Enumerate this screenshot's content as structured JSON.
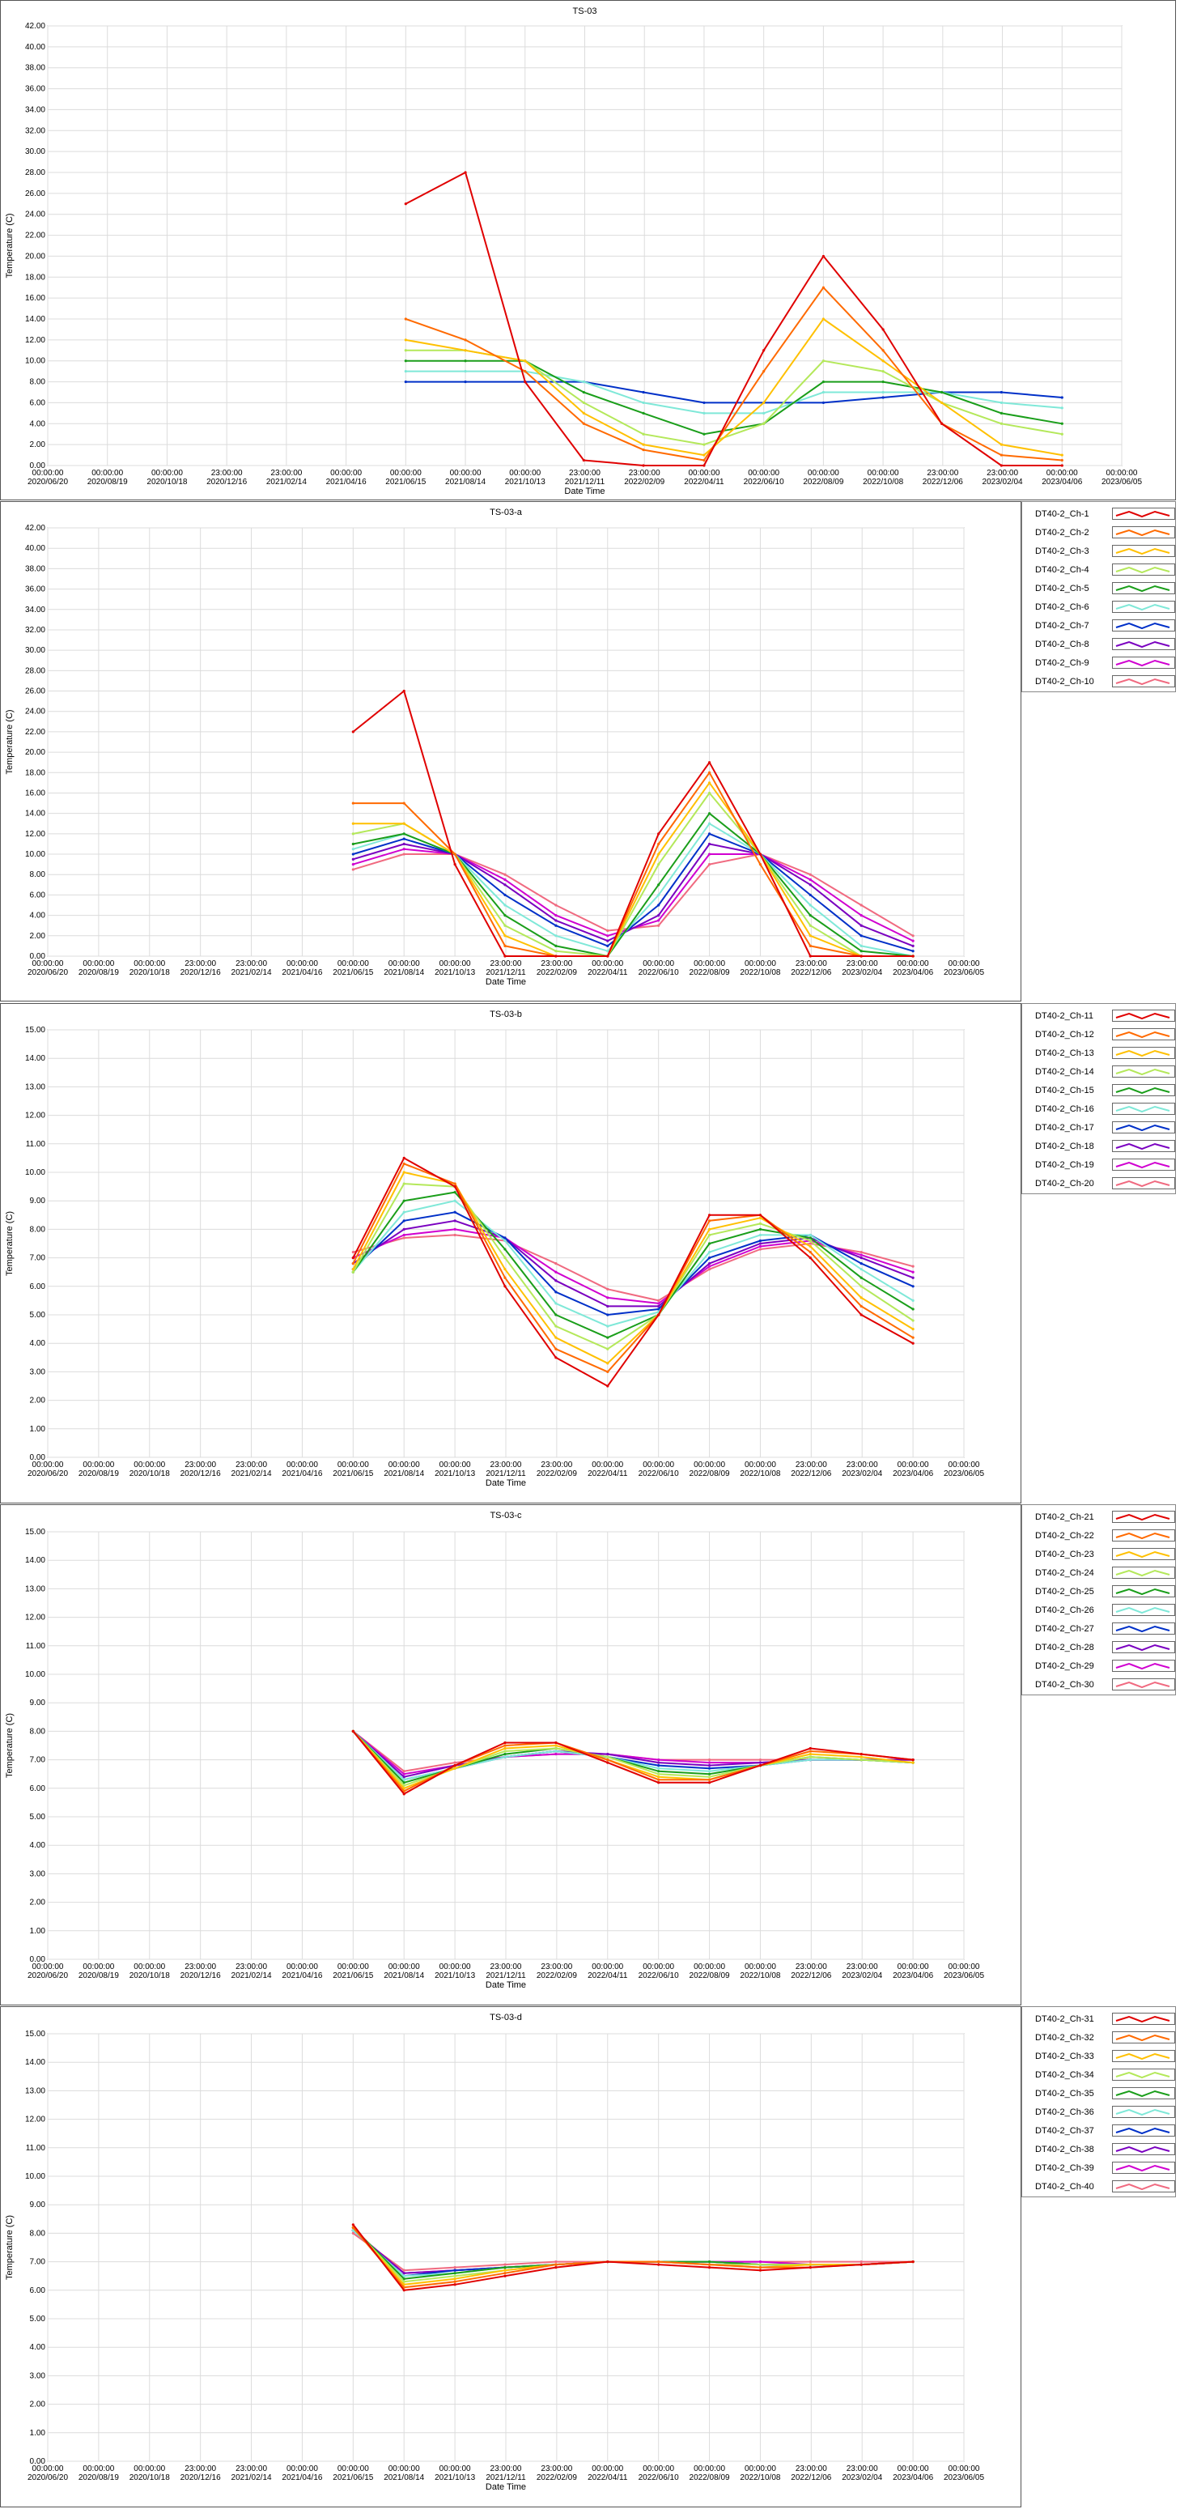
{
  "x_ticks": [
    {
      "t": "00:00:00",
      "d": "2020/06/20"
    },
    {
      "t": "00:00:00",
      "d": "2020/08/19"
    },
    {
      "t": "00:00:00",
      "d": "2020/10/18"
    },
    {
      "t": "23:00:00",
      "d": "2020/12/16"
    },
    {
      "t": "23:00:00",
      "d": "2021/02/14"
    },
    {
      "t": "00:00:00",
      "d": "2021/04/16"
    },
    {
      "t": "00:00:00",
      "d": "2021/06/15"
    },
    {
      "t": "00:00:00",
      "d": "2021/08/14"
    },
    {
      "t": "00:00:00",
      "d": "2021/10/13"
    },
    {
      "t": "23:00:00",
      "d": "2021/12/11"
    },
    {
      "t": "23:00:00",
      "d": "2022/02/09"
    },
    {
      "t": "00:00:00",
      "d": "2022/04/11"
    },
    {
      "t": "00:00:00",
      "d": "2022/06/10"
    },
    {
      "t": "00:00:00",
      "d": "2022/08/09"
    },
    {
      "t": "00:00:00",
      "d": "2022/10/08"
    },
    {
      "t": "23:00:00",
      "d": "2022/12/06"
    },
    {
      "t": "23:00:00",
      "d": "2023/02/04"
    },
    {
      "t": "00:00:00",
      "d": "2023/04/06"
    },
    {
      "t": "00:00:00",
      "d": "2023/06/05"
    }
  ],
  "xlabel": "Date Time",
  "ylabel": "Temperature (C)",
  "chart_data": [
    {
      "type": "line",
      "title": "TS-03",
      "xlabel": "Date Time",
      "ylabel": "Temperature (C)",
      "x_range": [
        "2020/06/20",
        "2023/06/05"
      ],
      "ylim": [
        0,
        42
      ],
      "grid": true,
      "legend": "none",
      "x": [
        "2021/06/15",
        "2021/08/14",
        "2021/10/13",
        "2021/12/11",
        "2022/02/09",
        "2022/04/11",
        "2022/06/10",
        "2022/08/09",
        "2022/10/08",
        "2022/12/06",
        "2023/02/04",
        "2023/04/06"
      ],
      "series": [
        {
          "values": [
            25,
            28,
            8,
            0.5,
            0,
            0,
            11,
            20,
            13,
            4,
            0,
            0
          ]
        },
        {
          "values": [
            14,
            12,
            9,
            4,
            1.5,
            0.5,
            9,
            17,
            11,
            4,
            1,
            0.5
          ]
        },
        {
          "values": [
            12,
            11,
            10,
            5,
            2,
            1,
            6,
            14,
            10,
            6,
            2,
            1
          ]
        },
        {
          "values": [
            11,
            11,
            10,
            6,
            3,
            2,
            4,
            10,
            9,
            6,
            4,
            3
          ]
        },
        {
          "values": [
            10,
            10,
            10,
            7,
            5,
            3,
            4,
            8,
            8,
            7,
            5,
            4
          ]
        },
        {
          "values": [
            9,
            9,
            9,
            8,
            6,
            5,
            5,
            7,
            7,
            7,
            6,
            5.5
          ]
        },
        {
          "values": [
            8,
            8,
            8,
            8,
            7,
            6,
            6,
            6,
            6.5,
            7,
            7,
            6.5
          ]
        }
      ]
    },
    {
      "type": "line",
      "title": "TS-03-a",
      "xlabel": "Date Time",
      "ylabel": "Temperature (C)",
      "x_range": [
        "2020/06/20",
        "2023/06/05"
      ],
      "ylim": [
        0,
        42
      ],
      "grid": true,
      "legend": "right",
      "x": [
        "2021/06/15",
        "2021/08/14",
        "2021/10/13",
        "2021/12/11",
        "2022/02/09",
        "2022/04/11",
        "2022/06/10",
        "2022/08/09",
        "2022/10/08",
        "2022/12/06",
        "2023/02/04",
        "2023/04/06"
      ],
      "series": [
        {
          "name": "DT40-2_Ch-1",
          "values": [
            22,
            26,
            9,
            0,
            0,
            0,
            12,
            19,
            10,
            0,
            0,
            0
          ]
        },
        {
          "name": "DT40-2_Ch-2",
          "values": [
            15,
            15,
            10,
            1,
            0,
            0,
            11,
            18,
            9,
            1,
            0,
            0
          ]
        },
        {
          "name": "DT40-2_Ch-3",
          "values": [
            13,
            13,
            10,
            2,
            0,
            0,
            10,
            17,
            10,
            2,
            0,
            0
          ]
        },
        {
          "name": "DT40-2_Ch-4",
          "values": [
            12,
            13,
            10,
            3,
            0.5,
            0,
            9,
            16,
            10,
            3,
            0,
            0
          ]
        },
        {
          "name": "DT40-2_Ch-5",
          "values": [
            11,
            12,
            10,
            4,
            1,
            0,
            7,
            14,
            10,
            4,
            0.5,
            0
          ]
        },
        {
          "name": "DT40-2_Ch-6",
          "values": [
            10.5,
            12,
            10,
            5,
            2,
            0.5,
            6,
            13,
            10,
            5,
            1,
            0
          ]
        },
        {
          "name": "DT40-2_Ch-7",
          "values": [
            10,
            11.5,
            10,
            6,
            3,
            1,
            5,
            12,
            10,
            6,
            2,
            0.5
          ]
        },
        {
          "name": "DT40-2_Ch-8",
          "values": [
            9.5,
            11,
            10,
            7,
            3.5,
            1.5,
            4,
            11,
            10,
            7,
            3,
            1
          ]
        },
        {
          "name": "DT40-2_Ch-9",
          "values": [
            9,
            10.5,
            10,
            7.5,
            4,
            2,
            3.5,
            10,
            10,
            7.5,
            4,
            1.5
          ]
        },
        {
          "name": "DT40-2_Ch-10",
          "values": [
            8.5,
            10,
            10,
            8,
            5,
            2.5,
            3,
            9,
            10,
            8,
            5,
            2
          ]
        }
      ]
    },
    {
      "type": "line",
      "title": "TS-03-b",
      "xlabel": "Date Time",
      "ylabel": "Temperature (C)",
      "x_range": [
        "2020/06/20",
        "2023/06/05"
      ],
      "ylim": [
        0,
        15
      ],
      "grid": true,
      "legend": "right",
      "x": [
        "2021/06/15",
        "2021/08/14",
        "2021/10/13",
        "2021/12/11",
        "2022/02/09",
        "2022/04/11",
        "2022/06/10",
        "2022/08/09",
        "2022/10/08",
        "2022/12/06",
        "2023/02/04",
        "2023/04/06"
      ],
      "series": [
        {
          "name": "DT40-2_Ch-11",
          "values": [
            7,
            10.5,
            9.5,
            6,
            3.5,
            2.5,
            5,
            8.5,
            8.5,
            7,
            5,
            4
          ]
        },
        {
          "name": "DT40-2_Ch-12",
          "values": [
            6.8,
            10.3,
            9.6,
            6.3,
            3.8,
            3,
            5,
            8.3,
            8.5,
            7.2,
            5.3,
            4.2
          ]
        },
        {
          "name": "DT40-2_Ch-13",
          "values": [
            6.6,
            10,
            9.6,
            6.6,
            4.2,
            3.3,
            5,
            8,
            8.4,
            7.4,
            5.6,
            4.5
          ]
        },
        {
          "name": "DT40-2_Ch-14",
          "values": [
            6.5,
            9.6,
            9.5,
            7,
            4.6,
            3.8,
            5,
            7.8,
            8.2,
            7.6,
            6,
            4.8
          ]
        },
        {
          "name": "DT40-2_Ch-15",
          "values": [
            6.5,
            9,
            9.3,
            7.3,
            5,
            4.2,
            5,
            7.5,
            8,
            7.7,
            6.3,
            5.2
          ]
        },
        {
          "name": "DT40-2_Ch-16",
          "values": [
            6.5,
            8.6,
            9,
            7.6,
            5.4,
            4.6,
            5.1,
            7.2,
            7.8,
            7.8,
            6.6,
            5.5
          ]
        },
        {
          "name": "DT40-2_Ch-17",
          "values": [
            6.6,
            8.3,
            8.6,
            7.7,
            5.8,
            5,
            5.2,
            7,
            7.6,
            7.8,
            6.8,
            6
          ]
        },
        {
          "name": "DT40-2_Ch-18",
          "values": [
            6.8,
            8,
            8.3,
            7.7,
            6.2,
            5.3,
            5.3,
            6.8,
            7.5,
            7.7,
            7,
            6.3
          ]
        },
        {
          "name": "DT40-2_Ch-19",
          "values": [
            7,
            7.8,
            8,
            7.7,
            6.5,
            5.6,
            5.4,
            6.7,
            7.4,
            7.6,
            7.1,
            6.5
          ]
        },
        {
          "name": "DT40-2_Ch-20",
          "values": [
            7.2,
            7.7,
            7.8,
            7.6,
            6.8,
            5.9,
            5.5,
            6.6,
            7.3,
            7.5,
            7.2,
            6.7
          ]
        }
      ]
    },
    {
      "type": "line",
      "title": "TS-03-c",
      "xlabel": "Date Time",
      "ylabel": "Temperature (C)",
      "x_range": [
        "2020/06/20",
        "2023/06/05"
      ],
      "ylim": [
        0,
        15
      ],
      "grid": true,
      "legend": "right",
      "x": [
        "2021/06/15",
        "2021/08/14",
        "2021/10/13",
        "2021/12/11",
        "2022/02/09",
        "2022/04/11",
        "2022/06/10",
        "2022/08/09",
        "2022/10/08",
        "2022/12/06",
        "2023/02/04",
        "2023/04/06"
      ],
      "series": [
        {
          "name": "DT40-2_Ch-21",
          "values": [
            8,
            5.8,
            6.8,
            7.6,
            7.6,
            6.9,
            6.2,
            6.2,
            6.8,
            7.4,
            7.2,
            7
          ]
        },
        {
          "name": "DT40-2_Ch-22",
          "values": [
            8,
            5.9,
            6.8,
            7.5,
            7.6,
            7,
            6.3,
            6.3,
            6.8,
            7.3,
            7.2,
            7
          ]
        },
        {
          "name": "DT40-2_Ch-23",
          "values": [
            8,
            6,
            6.7,
            7.4,
            7.5,
            7,
            6.4,
            6.3,
            6.8,
            7.2,
            7.1,
            6.9
          ]
        },
        {
          "name": "DT40-2_Ch-24",
          "values": [
            8,
            6.1,
            6.7,
            7.3,
            7.4,
            7.1,
            6.5,
            6.4,
            6.8,
            7.1,
            7,
            6.9
          ]
        },
        {
          "name": "DT40-2_Ch-25",
          "values": [
            8,
            6.2,
            6.7,
            7.2,
            7.4,
            7.1,
            6.6,
            6.5,
            6.8,
            7.1,
            7,
            6.9
          ]
        },
        {
          "name": "DT40-2_Ch-26",
          "values": [
            8,
            6.3,
            6.7,
            7.1,
            7.3,
            7.1,
            6.7,
            6.6,
            6.8,
            7,
            7,
            6.9
          ]
        },
        {
          "name": "DT40-2_Ch-27",
          "values": [
            8,
            6.3,
            6.7,
            7.1,
            7.3,
            7.1,
            6.8,
            6.7,
            6.8,
            7,
            7,
            6.9
          ]
        },
        {
          "name": "DT40-2_Ch-28",
          "values": [
            8,
            6.4,
            6.8,
            7.1,
            7.3,
            7.2,
            6.9,
            6.8,
            6.9,
            7,
            7,
            7
          ]
        },
        {
          "name": "DT40-2_Ch-29",
          "values": [
            8,
            6.5,
            6.8,
            7.1,
            7.2,
            7.2,
            7,
            6.9,
            6.9,
            7,
            7,
            7
          ]
        },
        {
          "name": "DT40-2_Ch-30",
          "values": [
            8,
            6.6,
            6.9,
            7.1,
            7.2,
            7.2,
            7,
            7,
            7,
            7,
            7,
            7
          ]
        }
      ]
    },
    {
      "type": "line",
      "title": "TS-03-d",
      "xlabel": "Date Time",
      "ylabel": "Temperature (C)",
      "x_range": [
        "2020/06/20",
        "2023/06/05"
      ],
      "ylim": [
        0,
        15
      ],
      "grid": true,
      "legend": "right",
      "x": [
        "2021/06/15",
        "2021/08/14",
        "2021/10/13",
        "2021/12/11",
        "2022/02/09",
        "2022/04/11",
        "2022/06/10",
        "2022/08/09",
        "2022/10/08",
        "2022/12/06",
        "2023/02/04",
        "2023/04/06"
      ],
      "series": [
        {
          "name": "DT40-2_Ch-31",
          "values": [
            8.3,
            6,
            6.2,
            6.5,
            6.8,
            7,
            6.9,
            6.8,
            6.7,
            6.8,
            6.9,
            7
          ]
        },
        {
          "name": "DT40-2_Ch-32",
          "values": [
            8.2,
            6.1,
            6.3,
            6.6,
            6.9,
            7,
            7,
            6.9,
            6.8,
            6.8,
            6.9,
            7
          ]
        },
        {
          "name": "DT40-2_Ch-33",
          "values": [
            8.2,
            6.2,
            6.4,
            6.7,
            6.9,
            7,
            7,
            6.9,
            6.8,
            6.9,
            6.9,
            7
          ]
        },
        {
          "name": "DT40-2_Ch-34",
          "values": [
            8.2,
            6.3,
            6.5,
            6.7,
            6.9,
            7,
            7,
            6.9,
            6.9,
            6.9,
            6.9,
            7
          ]
        },
        {
          "name": "DT40-2_Ch-35",
          "values": [
            8.2,
            6.4,
            6.6,
            6.8,
            6.9,
            7,
            7,
            7,
            6.9,
            6.9,
            6.9,
            7
          ]
        },
        {
          "name": "DT40-2_Ch-36",
          "values": [
            8.1,
            6.5,
            6.6,
            6.8,
            6.9,
            7,
            7,
            7,
            6.9,
            6.9,
            6.9,
            7
          ]
        },
        {
          "name": "DT40-2_Ch-37",
          "values": [
            8.1,
            6.5,
            6.7,
            6.8,
            6.9,
            7,
            7,
            7,
            6.9,
            6.9,
            6.9,
            7
          ]
        },
        {
          "name": "DT40-2_Ch-38",
          "values": [
            8.1,
            6.6,
            6.7,
            6.8,
            6.9,
            7,
            7,
            7,
            6.9,
            6.9,
            6.9,
            7
          ]
        },
        {
          "name": "DT40-2_Ch-39",
          "values": [
            8.1,
            6.6,
            6.7,
            6.8,
            6.9,
            7,
            7,
            7,
            7,
            6.9,
            6.9,
            7
          ]
        },
        {
          "name": "DT40-2_Ch-40",
          "values": [
            8,
            6.7,
            6.8,
            6.9,
            7,
            7,
            7,
            7,
            7,
            7,
            7,
            7
          ]
        }
      ]
    }
  ],
  "colors": [
    "#e00000",
    "#ff6a00",
    "#ffc000",
    "#b4e85a",
    "#1a9e1a",
    "#7fe8d8",
    "#0030c8",
    "#7a00c0",
    "#d000d0",
    "#f06a80"
  ]
}
